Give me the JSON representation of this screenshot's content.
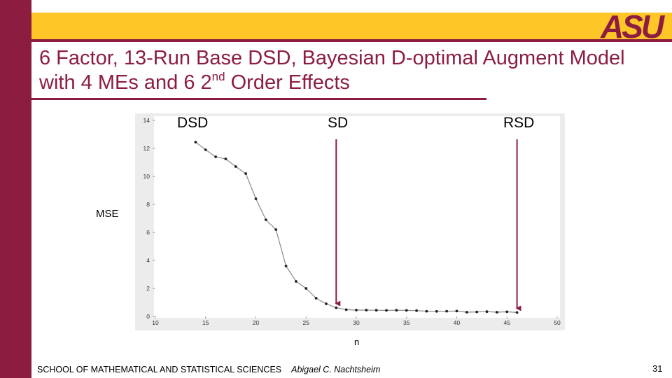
{
  "slide": {
    "title_part1": "6 Factor, 13-Run Base DSD, Bayesian D-optimal Augment Model with 4 MEs and 6 2",
    "title_sup": "nd",
    "title_part2": " Order Effects",
    "logo_text": "ASU",
    "footer_school": "SCHOOL OF MATHEMATICAL AND STATISTICAL SCIENCES",
    "footer_author": "Abigael C. Nachtsheim",
    "page_number": "31",
    "colors": {
      "maroon": "#8c1d40",
      "gold": "#ffc627"
    }
  },
  "chart_data": {
    "type": "line",
    "xlabel": "n",
    "ylabel": "MSE",
    "xlim": [
      10,
      50
    ],
    "ylim": [
      0,
      14
    ],
    "xticks": [
      10,
      15,
      20,
      25,
      30,
      35,
      40,
      45,
      50
    ],
    "yticks": [
      0,
      2,
      4,
      6,
      8,
      10,
      12,
      14
    ],
    "grid": false,
    "series": [
      {
        "x": [
          14,
          15,
          16,
          17,
          18,
          19,
          20,
          21,
          22,
          23,
          24,
          25,
          26,
          27,
          28,
          29,
          30,
          31,
          32,
          33,
          34,
          35,
          36,
          37,
          38,
          39,
          40,
          41,
          42,
          43,
          44,
          45,
          46
        ],
        "values": [
          12.45,
          11.9,
          11.4,
          11.25,
          10.7,
          10.2,
          8.4,
          6.9,
          6.2,
          3.6,
          2.5,
          2.0,
          1.3,
          0.9,
          0.62,
          0.48,
          0.45,
          0.45,
          0.44,
          0.43,
          0.44,
          0.43,
          0.41,
          0.37,
          0.36,
          0.37,
          0.38,
          0.3,
          0.32,
          0.34,
          0.3,
          0.33,
          0.28
        ]
      }
    ],
    "annotations": [
      {
        "text": "DSD",
        "target_x": null
      },
      {
        "text": "SD",
        "target_x": 28
      },
      {
        "text": "RSD",
        "target_x": 46
      }
    ]
  }
}
